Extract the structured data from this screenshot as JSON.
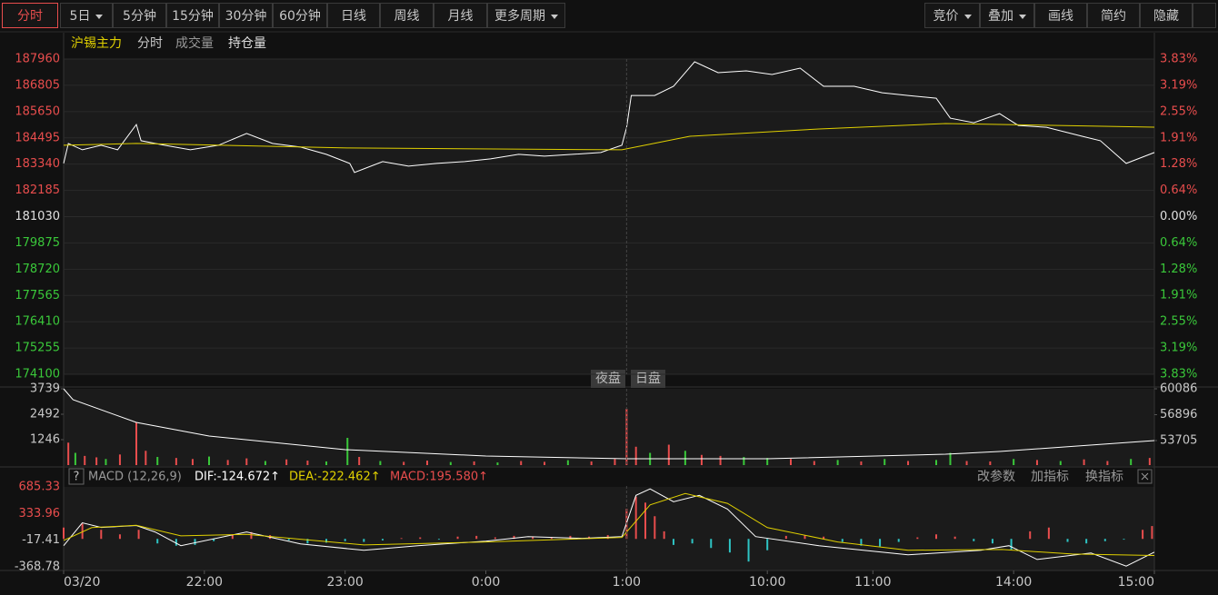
{
  "toolbar": {
    "periods": [
      "分时",
      "5日",
      "5分钟",
      "15分钟",
      "30分钟",
      "60分钟",
      "日线",
      "周线",
      "月线",
      "更多周期"
    ],
    "tools": [
      "竞价",
      "叠加",
      "画线",
      "简约",
      "隐藏"
    ]
  },
  "legend": [
    "沪锡主力",
    "分时",
    "成交量",
    "持仓量"
  ],
  "sessions": [
    "夜盘",
    "日盘"
  ],
  "macd_bar": {
    "help": "?",
    "name": "MACD (12,26,9)",
    "dif": "DIF:-124.672↑",
    "dea": "DEA:-222.462↑",
    "macd": "MACD:195.580↑",
    "actions": [
      "改参数",
      "加指标",
      "换指标"
    ]
  },
  "chart_data": [
    {
      "type": "line",
      "up_color": "#e84d4d",
      "down_color": "#3ac83a",
      "flat_color": "#e0e0e0",
      "xlim": [
        0,
        465
      ],
      "ylim": [
        174100,
        187960
      ],
      "yticks": [
        174100,
        175255,
        176410,
        177565,
        178720,
        179875,
        181030,
        182185,
        183340,
        184495,
        185650,
        186805,
        187960
      ],
      "y2lim": [
        -3.83,
        3.83
      ],
      "y2ticks": [
        {
          "value": -3.83,
          "label": "3.83%"
        },
        {
          "value": -3.19,
          "label": "3.19%"
        },
        {
          "value": -2.55,
          "label": "2.55%"
        },
        {
          "value": -1.91,
          "label": "1.91%"
        },
        {
          "value": -1.28,
          "label": "1.28%"
        },
        {
          "value": -0.64,
          "label": "0.64%"
        },
        {
          "value": 0,
          "label": "0.00%"
        },
        {
          "value": 0.64,
          "label": "0.64%"
        },
        {
          "value": 1.28,
          "label": "1.28%"
        },
        {
          "value": 1.91,
          "label": "1.91%"
        },
        {
          "value": 2.55,
          "label": "2.55%"
        },
        {
          "value": 3.19,
          "label": "3.19%"
        },
        {
          "value": 3.83,
          "label": "3.83%"
        }
      ],
      "grid": true,
      "series": [
        {
          "color": "#ffffff",
          "x": [
            0,
            2,
            8,
            16,
            23,
            31,
            33,
            43,
            54,
            66,
            78,
            89,
            101,
            112,
            122,
            124,
            136,
            147,
            159,
            171,
            182,
            194,
            205,
            217,
            229,
            238,
            240,
            242,
            252,
            260,
            269,
            279,
            291,
            302,
            314,
            324,
            337,
            349,
            360,
            372,
            378,
            388,
            399,
            407,
            419,
            434,
            442,
            453,
            465
          ],
          "values": [
            183370,
            184250,
            183970,
            184170,
            183970,
            185080,
            184370,
            184170,
            183970,
            184170,
            184690,
            184250,
            184090,
            183770,
            183370,
            182970,
            183450,
            183250,
            183370,
            183450,
            183570,
            183770,
            183690,
            183770,
            183850,
            184170,
            184960,
            186360,
            186360,
            186760,
            187840,
            187360,
            187440,
            187280,
            187560,
            186760,
            186760,
            186480,
            186360,
            186240,
            185360,
            185160,
            185560,
            185040,
            184960,
            184570,
            184370,
            183370,
            183850
          ]
        },
        {
          "color": "#e0d000",
          "x": [
            0,
            31,
            122,
            238,
            267,
            322,
            376,
            465
          ],
          "values": [
            184170,
            184250,
            184050,
            183970,
            184565,
            184885,
            185124,
            184964
          ]
        }
      ]
    },
    {
      "type": "bar",
      "xlim": [
        0,
        465
      ],
      "ylim": [
        0,
        3739
      ],
      "yticks": [
        1246,
        2492,
        3739
      ],
      "y2lim": [
        50680,
        60086
      ],
      "y2ticks": [
        53705,
        56896,
        60086
      ],
      "x": [
        2,
        5,
        9,
        14,
        18,
        24,
        31,
        35,
        40,
        48,
        55,
        62,
        70,
        78,
        86,
        95,
        104,
        112,
        121,
        126,
        135,
        145,
        155,
        165,
        175,
        185,
        195,
        205,
        215,
        225,
        235,
        240,
        244,
        250,
        258,
        265,
        272,
        280,
        290,
        300,
        310,
        320,
        330,
        340,
        350,
        360,
        372,
        378,
        385,
        395,
        405,
        415,
        425,
        435,
        445,
        455,
        463
      ],
      "values": [
        1100,
        600,
        450,
        380,
        300,
        520,
        2090,
        700,
        400,
        350,
        300,
        420,
        250,
        330,
        200,
        280,
        220,
        180,
        1335,
        400,
        200,
        160,
        220,
        150,
        180,
        130,
        200,
        160,
        240,
        180,
        300,
        2760,
        900,
        600,
        1000,
        700,
        500,
        450,
        400,
        350,
        300,
        200,
        250,
        180,
        300,
        200,
        250,
        600,
        200,
        180,
        300,
        250,
        200,
        280,
        200,
        300,
        350
      ],
      "colors": [
        "#e84d4d",
        "#3ac83a",
        "#e84d4d",
        "#e84d4d",
        "#3ac83a",
        "#e84d4d",
        "#e84d4d",
        "#e84d4d",
        "#3ac83a",
        "#e84d4d",
        "#e84d4d",
        "#3ac83a",
        "#e84d4d",
        "#e84d4d",
        "#3ac83a",
        "#e84d4d",
        "#e84d4d",
        "#3ac83a",
        "#3ac83a",
        "#e84d4d",
        "#3ac83a",
        "#e84d4d",
        "#e84d4d",
        "#3ac83a",
        "#e84d4d",
        "#3ac83a",
        "#e84d4d",
        "#e84d4d",
        "#3ac83a",
        "#e84d4d",
        "#e84d4d",
        "#e84d4d",
        "#e84d4d",
        "#3ac83a",
        "#e84d4d",
        "#3ac83a",
        "#e84d4d",
        "#e84d4d",
        "#3ac83a",
        "#3ac83a",
        "#e84d4d",
        "#e84d4d",
        "#3ac83a",
        "#e84d4d",
        "#3ac83a",
        "#e84d4d",
        "#3ac83a",
        "#3ac83a",
        "#e84d4d",
        "#e84d4d",
        "#3ac83a",
        "#e84d4d",
        "#3ac83a",
        "#e84d4d",
        "#e84d4d",
        "#3ac83a",
        "#e84d4d"
      ],
      "series": [
        {
          "color": "#ffffff",
          "axis": "y2",
          "x": [
            0,
            4,
            31,
            62,
            120,
            180,
            240,
            300,
            376,
            399,
            465
          ],
          "values": [
            60086,
            58740,
            55940,
            54260,
            52580,
            51800,
            51460,
            51460,
            52020,
            52360,
            53705
          ]
        }
      ]
    },
    {
      "type": "macd",
      "up_color": "#e84d4d",
      "down_color": "#2ec4c4",
      "xlim": [
        0,
        465
      ],
      "xticks": [
        {
          "value": 0,
          "label": "03/20"
        },
        {
          "value": 60,
          "label": "22:00"
        },
        {
          "value": 120,
          "label": "23:00"
        },
        {
          "value": 180,
          "label": "0:00"
        },
        {
          "value": 240,
          "label": "1:00"
        },
        {
          "value": 300,
          "label": "10:00"
        },
        {
          "value": 345,
          "label": "11:00"
        },
        {
          "value": 405,
          "label": "14:00"
        },
        {
          "value": 465,
          "label": "15:00"
        }
      ],
      "ylim": [
        -430,
        700
      ],
      "yticks": [
        -368.78,
        -17.41,
        333.96,
        685.33
      ],
      "x": [
        0,
        8,
        16,
        24,
        32,
        40,
        48,
        56,
        64,
        72,
        80,
        88,
        96,
        104,
        112,
        120,
        128,
        136,
        144,
        152,
        160,
        168,
        176,
        184,
        192,
        200,
        208,
        216,
        224,
        232,
        240,
        244,
        248,
        252,
        256,
        260,
        268,
        276,
        284,
        292,
        300,
        308,
        316,
        324,
        332,
        340,
        348,
        356,
        364,
        372,
        380,
        388,
        396,
        404,
        412,
        420,
        428,
        436,
        444,
        452,
        460,
        464
      ],
      "values": [
        150,
        200,
        120,
        60,
        120,
        -60,
        -90,
        -80,
        -30,
        60,
        90,
        50,
        -20,
        -60,
        -50,
        -30,
        -40,
        -20,
        10,
        20,
        -10,
        30,
        40,
        20,
        40,
        30,
        20,
        40,
        30,
        50,
        400,
        560,
        480,
        300,
        100,
        -80,
        -60,
        -120,
        -180,
        -300,
        -150,
        40,
        50,
        30,
        -40,
        -90,
        -100,
        -40,
        20,
        60,
        30,
        -30,
        -60,
        -140,
        100,
        150,
        -40,
        -60,
        -30,
        -10,
        120,
        170
      ],
      "series": [
        {
          "color": "#ffffff",
          "x": [
            0,
            8,
            16,
            31,
            39,
            50,
            78,
            101,
            128,
            151,
            180,
            198,
            221,
            238,
            244,
            250,
            260,
            271,
            283,
            295,
            322,
            360,
            391,
            403,
            415,
            438,
            453,
            465
          ],
          "values": [
            -90,
            213,
            152,
            177,
            92,
            -90,
            92,
            -66,
            -151,
            -90,
            -30,
            31,
            7,
            31,
            576,
            661,
            492,
            576,
            395,
            31,
            -90,
            -211,
            -151,
            -90,
            -272,
            -187,
            -360,
            -175
          ]
        },
        {
          "color": "#e0d000",
          "x": [
            0,
            12,
            31,
            50,
            78,
            128,
            180,
            238,
            250,
            265,
            283,
            300,
            330,
            360,
            400,
            430,
            465
          ],
          "values": [
            -20,
            150,
            180,
            40,
            60,
            -80,
            -40,
            20,
            450,
            600,
            470,
            150,
            -40,
            -150,
            -140,
            -200,
            -220
          ]
        }
      ]
    }
  ]
}
